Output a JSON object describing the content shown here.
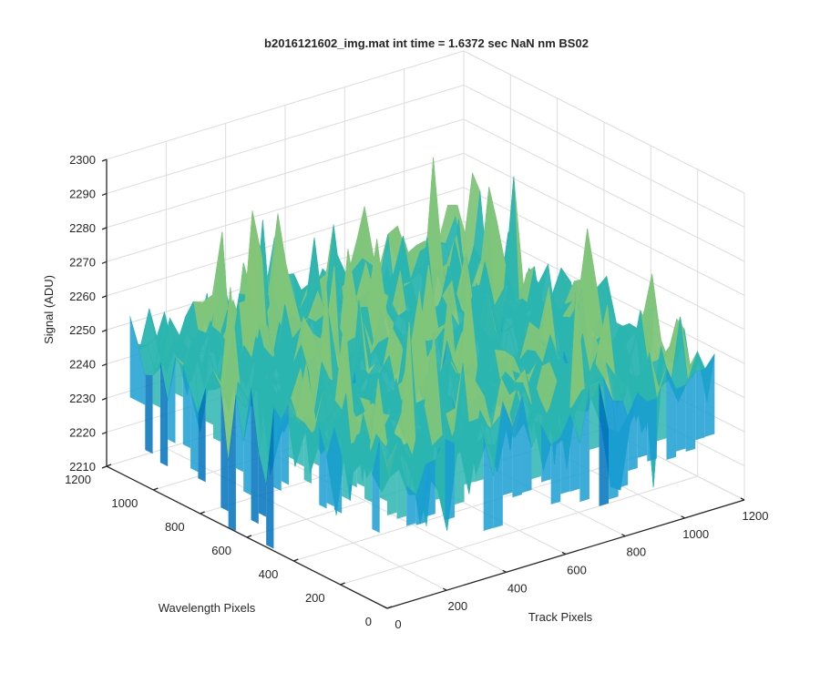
{
  "chart_data": {
    "type": "surface",
    "title": "b2016121602_img.mat int time = 1.6372 sec  NaN nm BS02",
    "xlabel": "Track Pixels",
    "ylabel": "Wavelength Pixels",
    "zlabel": "Signal (ADU)",
    "xlim": [
      0,
      1200
    ],
    "ylim": [
      0,
      1200
    ],
    "zlim": [
      2210,
      2300
    ],
    "xticks": [
      0,
      200,
      400,
      600,
      800,
      1000,
      1200
    ],
    "yticks": [
      0,
      200,
      400,
      600,
      800,
      1000,
      1200
    ],
    "zticks": [
      2210,
      2220,
      2230,
      2240,
      2250,
      2260,
      2270,
      2280,
      2290,
      2300
    ],
    "data_extent": {
      "x": [
        0,
        1100
      ],
      "y": [
        0,
        1100
      ]
    },
    "surface_mean": 2250,
    "surface_noise_range": [
      2215,
      2290
    ],
    "colormap": [
      "#0072bd",
      "#1a9ed2",
      "#2bb5b0",
      "#7fc57a",
      "#c9c43e",
      "#e8b637"
    ],
    "grid": true
  }
}
